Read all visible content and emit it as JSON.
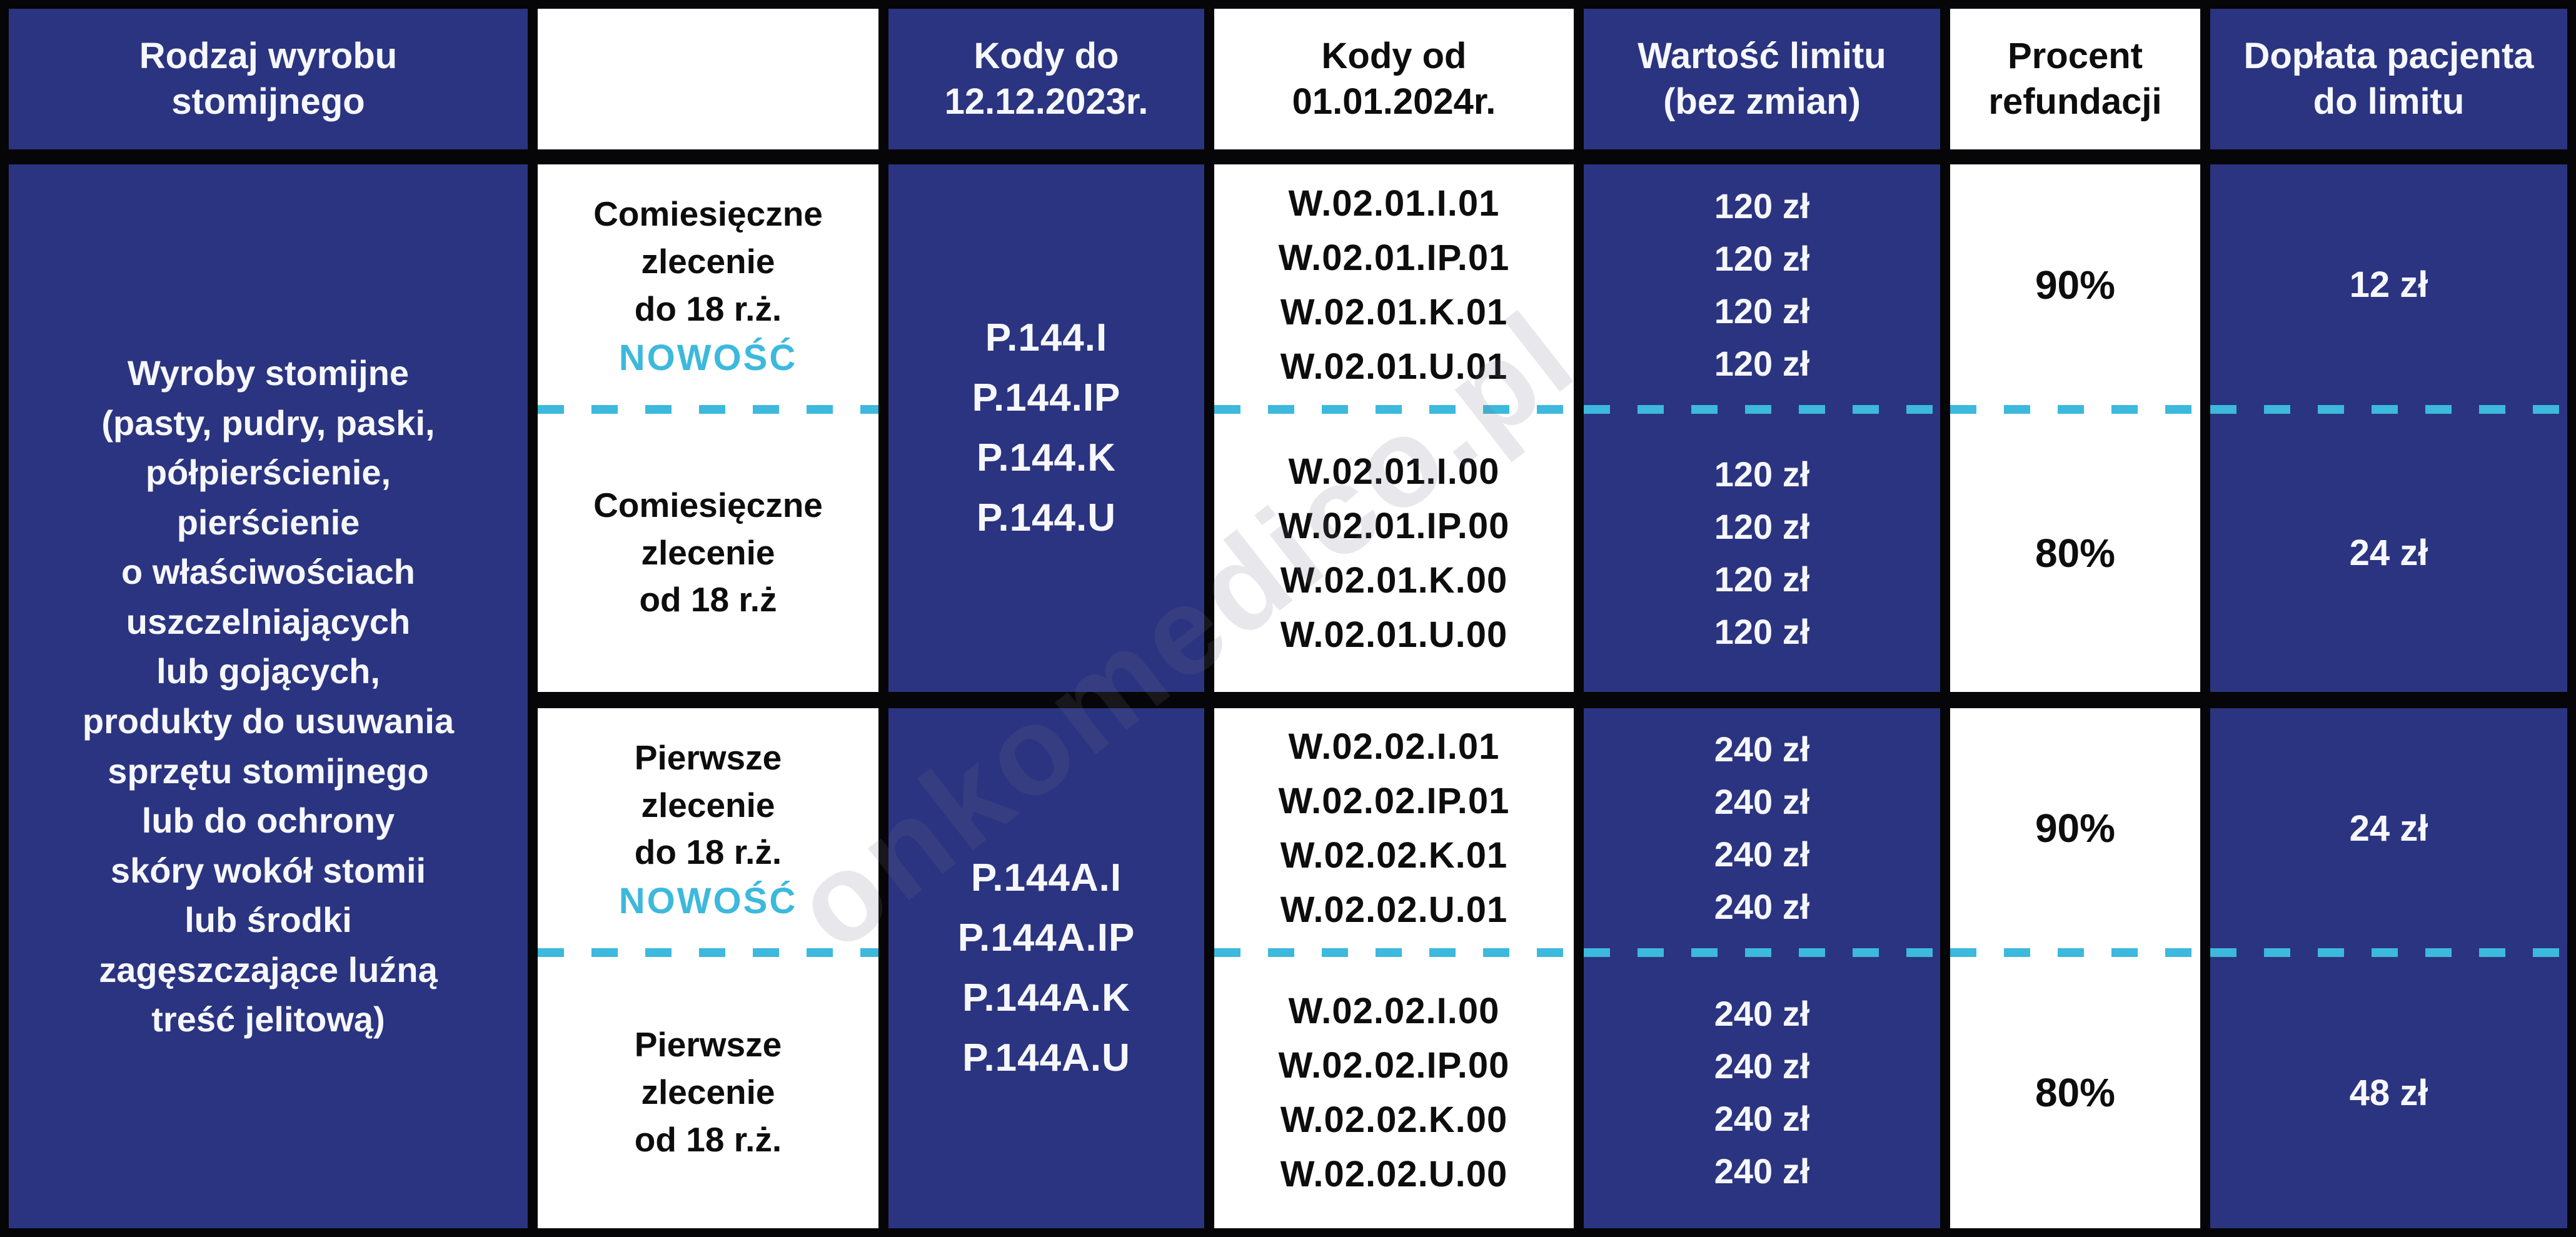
{
  "colors": {
    "navy": "#2b3480",
    "cyan": "#3cb9dc",
    "border": "#060608",
    "text_dark": "#0d0d0d",
    "text_light": "#f6f7fb"
  },
  "watermark": "onkomedico.pl",
  "header": {
    "product": "Rodzaj wyrobu\nstomijnego",
    "order_type": "",
    "codes_old": "Kody do\n12.12.2023r.",
    "codes_new": "Kody od\n01.01.2024r.",
    "limit": "Wartość limitu\n(bez zmian)",
    "refund": "Procent\nrefundacji",
    "copay": "Dopłata pacjenta\ndo limitu"
  },
  "product_description": "Wyroby stomijne\n(pasty, pudry, paski,\npółpierścienie,\npierścienie\no właściwościach\nuszczelniających\nlub gojących,\nprodukty do usuwania\nsprzętu stomijnego\nlub do ochrony\nskóry wokół stomii\nlub środki\nzagęszczające luźną\ntreść jelitową)",
  "codes_old": {
    "monthly": "P.144.I\nP.144.IP\nP.144.K\nP.144.U",
    "first": "P.144A.I\nP.144A.IP\nP.144A.K\nP.144A.U"
  },
  "rows": [
    {
      "order": "Comiesięczne\nzlecenie\ndo 18 r.ż.",
      "badge": "NOWOŚĆ",
      "codes_new": "W.02.01.I.01\nW.02.01.IP.01\nW.02.01.K.01\nW.02.01.U.01",
      "limit": "120 zł\n120 zł\n120 zł\n120 zł",
      "refund": "90%",
      "copay": "12 zł"
    },
    {
      "order": "Comiesięczne\nzlecenie\nod 18 r.ż",
      "codes_new": "W.02.01.I.00\nW.02.01.IP.00\nW.02.01.K.00\nW.02.01.U.00",
      "limit": "120 zł\n120 zł\n120 zł\n120 zł",
      "refund": "80%",
      "copay": "24 zł"
    },
    {
      "order": "Pierwsze\nzlecenie\ndo 18 r.ż.",
      "badge": "NOWOŚĆ",
      "codes_new": "W.02.02.I.01\nW.02.02.IP.01\nW.02.02.K.01\nW.02.02.U.01",
      "limit": "240 zł\n240 zł\n240 zł\n240 zł",
      "refund": "90%",
      "copay": "24 zł"
    },
    {
      "order": "Pierwsze\nzlecenie\nod 18 r.ż.",
      "codes_new": "W.02.02.I.00\nW.02.02.IP.00\nW.02.02.K.00\nW.02.02.U.00",
      "limit": "240 zł\n240 zł\n240 zł\n240 zł",
      "refund": "80%",
      "copay": "48 zł"
    }
  ]
}
